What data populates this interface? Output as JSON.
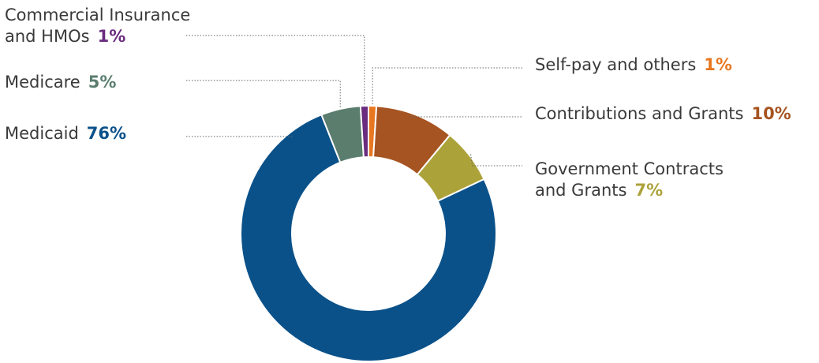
{
  "chart_data": {
    "type": "pie",
    "donut": true,
    "series": [
      {
        "name": "Self-pay and others",
        "label_lines": [
          "Self-pay and others"
        ],
        "value": 1,
        "value_label": "1%",
        "color": "#e87722"
      },
      {
        "name": "Contributions and Grants",
        "label_lines": [
          "Contributions and Grants"
        ],
        "value": 10,
        "value_label": "10%",
        "color": "#a65421"
      },
      {
        "name": "Government Contracts and Grants",
        "label_lines": [
          "Government Contracts",
          "and Grants"
        ],
        "value": 7,
        "value_label": "7%",
        "color": "#aca23a"
      },
      {
        "name": "Medicaid",
        "label_lines": [
          "Medicaid"
        ],
        "value": 76,
        "value_label": "76%",
        "color": "#0b5189"
      },
      {
        "name": "Medicare",
        "label_lines": [
          "Medicare"
        ],
        "value": 5,
        "value_label": "5%",
        "color": "#5a7d6e"
      },
      {
        "name": "Commercial Insurance and HMOs",
        "label_lines": [
          "Commercial Insurance",
          "and HMOs"
        ],
        "value": 1,
        "value_label": "1%",
        "color": "#6a2c7e"
      }
    ]
  }
}
